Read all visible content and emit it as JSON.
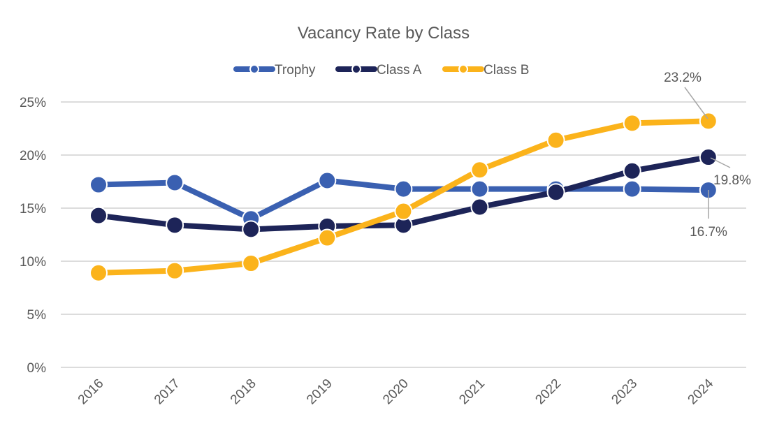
{
  "chart_data": {
    "type": "line",
    "title": "Vacancy Rate by Class",
    "xlabel": "",
    "ylabel": "",
    "categories": [
      "2016",
      "2017",
      "2018",
      "2019",
      "2020",
      "2021",
      "2022",
      "2023",
      "2024"
    ],
    "ylim": [
      0,
      25
    ],
    "yticks": [
      "0%",
      "5%",
      "10%",
      "15%",
      "20%",
      "25%"
    ],
    "grid": true,
    "legend": "top",
    "series": [
      {
        "name": "Trophy",
        "color": "#3a60b1",
        "values": [
          17.2,
          17.4,
          14.0,
          17.6,
          16.8,
          16.8,
          16.8,
          16.8,
          16.7
        ]
      },
      {
        "name": "Class A",
        "color": "#1d2458",
        "values": [
          14.3,
          13.4,
          13.0,
          13.3,
          13.4,
          15.1,
          16.5,
          18.5,
          19.8
        ]
      },
      {
        "name": "Class B",
        "color": "#fbb31b",
        "values": [
          8.9,
          9.1,
          9.8,
          12.2,
          14.7,
          18.6,
          21.4,
          23.0,
          23.2
        ]
      }
    ],
    "annotations": [
      "23.2%",
      "19.8%",
      "16.7%"
    ]
  }
}
